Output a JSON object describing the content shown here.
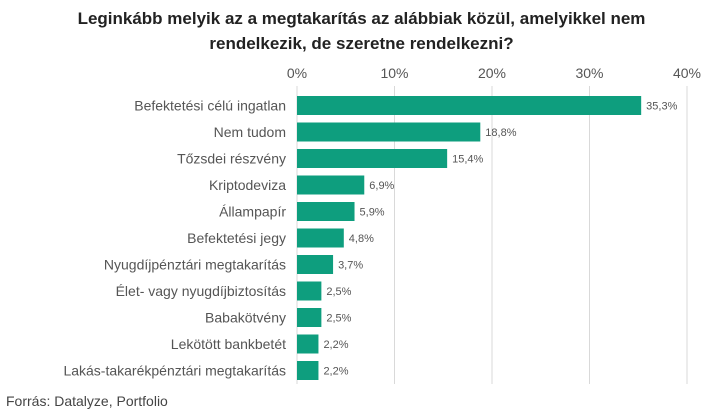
{
  "title_lines": [
    "Leginkább melyik az a megtakarítás az alábbiak közül, amelyikkel nem",
    "rendelkezik, de szeretne rendelkezni?"
  ],
  "source": "Forrás: Datalyze, Portfolio",
  "colors": {
    "bar": "#0e9e7e",
    "grid": "#d9d9d9",
    "text": "#555555"
  },
  "chart_data": {
    "type": "bar",
    "orientation": "horizontal",
    "categories": [
      "Befektetési célú ingatlan",
      "Nem tudom",
      "Tőzsdei részvény",
      "Kriptodeviza",
      "Állampapír",
      "Befektetési jegy",
      "Nyugdíjpénztári megtakarítás",
      "Élet- vagy nyugdíjbiztosítás",
      "Babakötvény",
      "Lekötött bankbetét",
      "Lakás-takarékpénztári megtakarítás"
    ],
    "values": [
      35.3,
      18.8,
      15.4,
      6.9,
      5.9,
      4.8,
      3.7,
      2.5,
      2.5,
      2.2,
      2.2
    ],
    "value_labels": [
      "35,3%",
      "18,8%",
      "15,4%",
      "6,9%",
      "5,9%",
      "4,8%",
      "3,7%",
      "2,5%",
      "2,5%",
      "2,2%",
      "2,2%"
    ],
    "xlim": [
      0,
      40
    ],
    "ticks": [
      0,
      10,
      20,
      30,
      40
    ],
    "tick_labels": [
      "0%",
      "10%",
      "20%",
      "30%",
      "40%"
    ],
    "axis_position": "top",
    "grid": true
  }
}
